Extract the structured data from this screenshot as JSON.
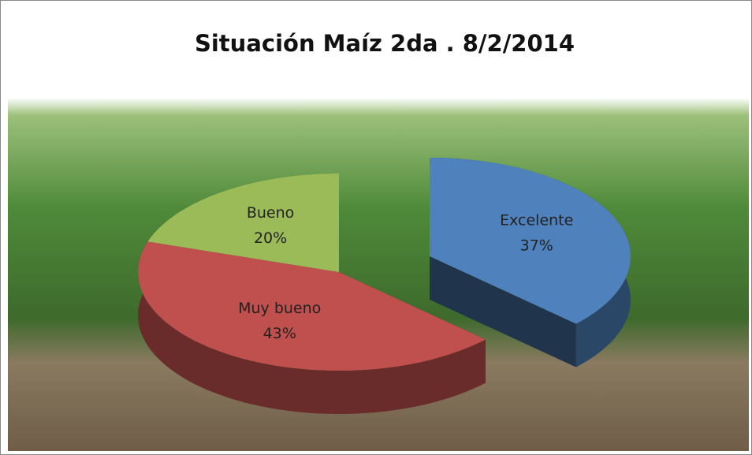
{
  "chart_data": {
    "type": "pie",
    "title": "Situación Maíz 2da . 8/2/2014",
    "categories": [
      "Excelente",
      "Muy bueno",
      "Bueno"
    ],
    "values": [
      37,
      43,
      20
    ],
    "value_labels": [
      "37%",
      "43%",
      "20%"
    ],
    "colors": [
      "#4f81bd",
      "#c0504d",
      "#9bbb59"
    ],
    "exploded": [
      true,
      false,
      false
    ]
  }
}
